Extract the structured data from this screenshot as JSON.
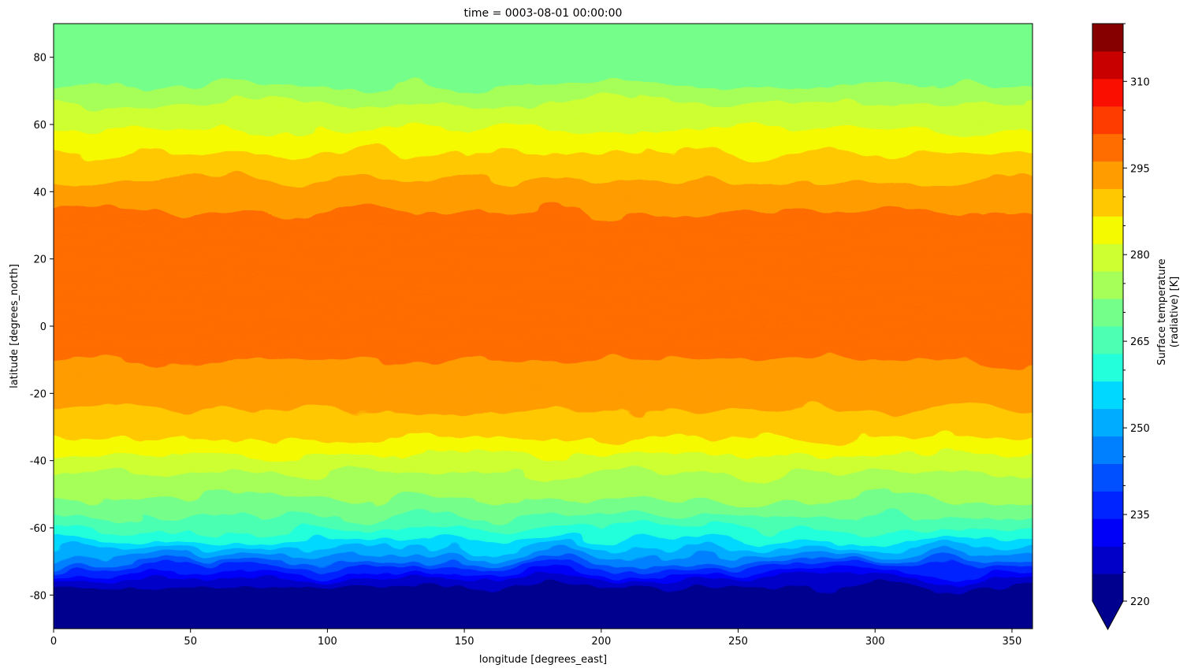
{
  "chart_data": {
    "type": "heatmap",
    "title": "time = 0003-08-01 00:00:00",
    "xlabel": "longitude [degrees_east]",
    "ylabel": "latitude [degrees_north]",
    "xlim": [
      0,
      357.5
    ],
    "ylim": [
      -90,
      90
    ],
    "x_ticks": [
      0,
      50,
      100,
      150,
      200,
      250,
      300,
      350
    ],
    "y_ticks": [
      -80,
      -60,
      -40,
      -20,
      0,
      20,
      40,
      60,
      80
    ],
    "grid": false,
    "colorbar": {
      "label_line1": "Surface temperature",
      "label_line2": "(radiative) [K]",
      "min": 220,
      "max": 320,
      "levels": [
        220,
        225,
        230,
        235,
        240,
        245,
        250,
        255,
        260,
        265,
        270,
        275,
        280,
        285,
        290,
        295,
        300,
        305,
        310,
        315,
        320
      ],
      "tick_labels": [
        220,
        235,
        250,
        265,
        280,
        295,
        310
      ],
      "extend": "min",
      "colormap": "jet",
      "colors": [
        "#00008f",
        "#0000c8",
        "#0000f9",
        "#0024ff",
        "#0050ff",
        "#0080ff",
        "#00acff",
        "#00d8ff",
        "#24ffdb",
        "#4cffb2",
        "#74ff8a",
        "#a6ff58",
        "#ceff30",
        "#f6fa00",
        "#ffc800",
        "#ff9c00",
        "#ff6c00",
        "#ff3c00",
        "#f90e00",
        "#c80000",
        "#860000"
      ],
      "under_color": "#00008f"
    },
    "zonal_mean_temperature_K": {
      "lat": [
        -90,
        -80,
        -75,
        -70,
        -65,
        -60,
        -55,
        -50,
        -45,
        -40,
        -35,
        -30,
        -20,
        -10,
        0,
        10,
        20,
        30,
        40,
        50,
        55,
        60,
        65,
        70,
        75,
        80,
        90
      ],
      "values": [
        210,
        220,
        230,
        245,
        258,
        266,
        272,
        276,
        279,
        282,
        288,
        293,
        297,
        300,
        301,
        302,
        303,
        302,
        297,
        291,
        287,
        284,
        281,
        277,
        272,
        273,
        273
      ]
    }
  }
}
